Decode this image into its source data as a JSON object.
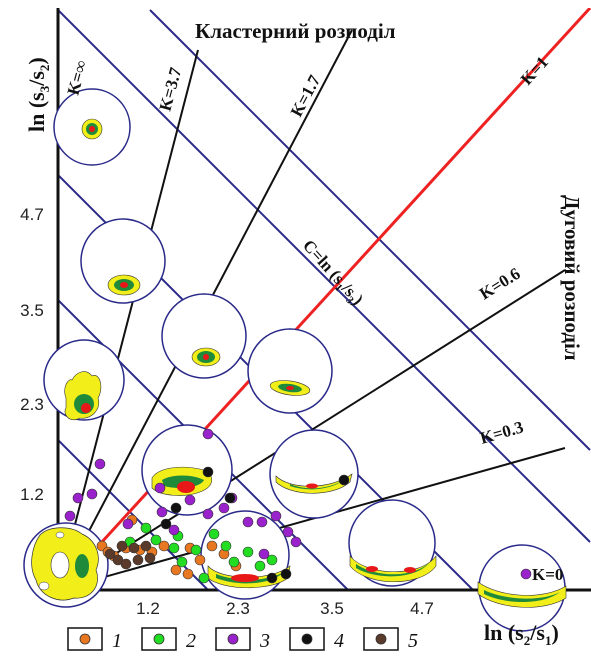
{
  "title": "Кластерний розподіл",
  "right_title": "Дуговий розподіл",
  "axes": {
    "x_label_main": "ln (s",
    "x_label_sub1": "2",
    "x_label_mid": "/s",
    "x_label_sub2": "1",
    "x_label_end": ")",
    "y_label_main": "ln (s",
    "y_label_sub1": "3",
    "y_label_mid": "/s",
    "y_label_sub2": "2",
    "y_label_end": ")",
    "x_ticks": [
      "1.2",
      "2.3",
      "3.5",
      "4.7"
    ],
    "y_ticks": [
      "1.2",
      "2.3",
      "3.5",
      "4.7"
    ]
  },
  "k_lines": [
    {
      "label": "K=∞"
    },
    {
      "label": "K=3.7"
    },
    {
      "label": "K=1.7"
    },
    {
      "label": "K=1"
    },
    {
      "label": "K=0.6"
    },
    {
      "label": "K=0.3"
    },
    {
      "label": "K=0"
    }
  ],
  "c_label": {
    "main": "C=ln (s",
    "sub1": "1",
    "mid": "/s",
    "sub2": "3",
    "end": ")"
  },
  "legend": [
    {
      "label": "1",
      "color": "#e87722"
    },
    {
      "label": "2",
      "color": "#22dd22"
    },
    {
      "label": "3",
      "color": "#9a22cc"
    },
    {
      "label": "4",
      "color": "#111111"
    },
    {
      "label": "5",
      "color": "#5a3a2a"
    }
  ],
  "colors": {
    "k1_line": "#ee2222",
    "c_lines": "#2a2a8a",
    "k_lines": "#111111",
    "contour_yellow": "#f2ee1a",
    "contour_green": "#1f8a3a",
    "contour_red": "#e81818"
  }
}
